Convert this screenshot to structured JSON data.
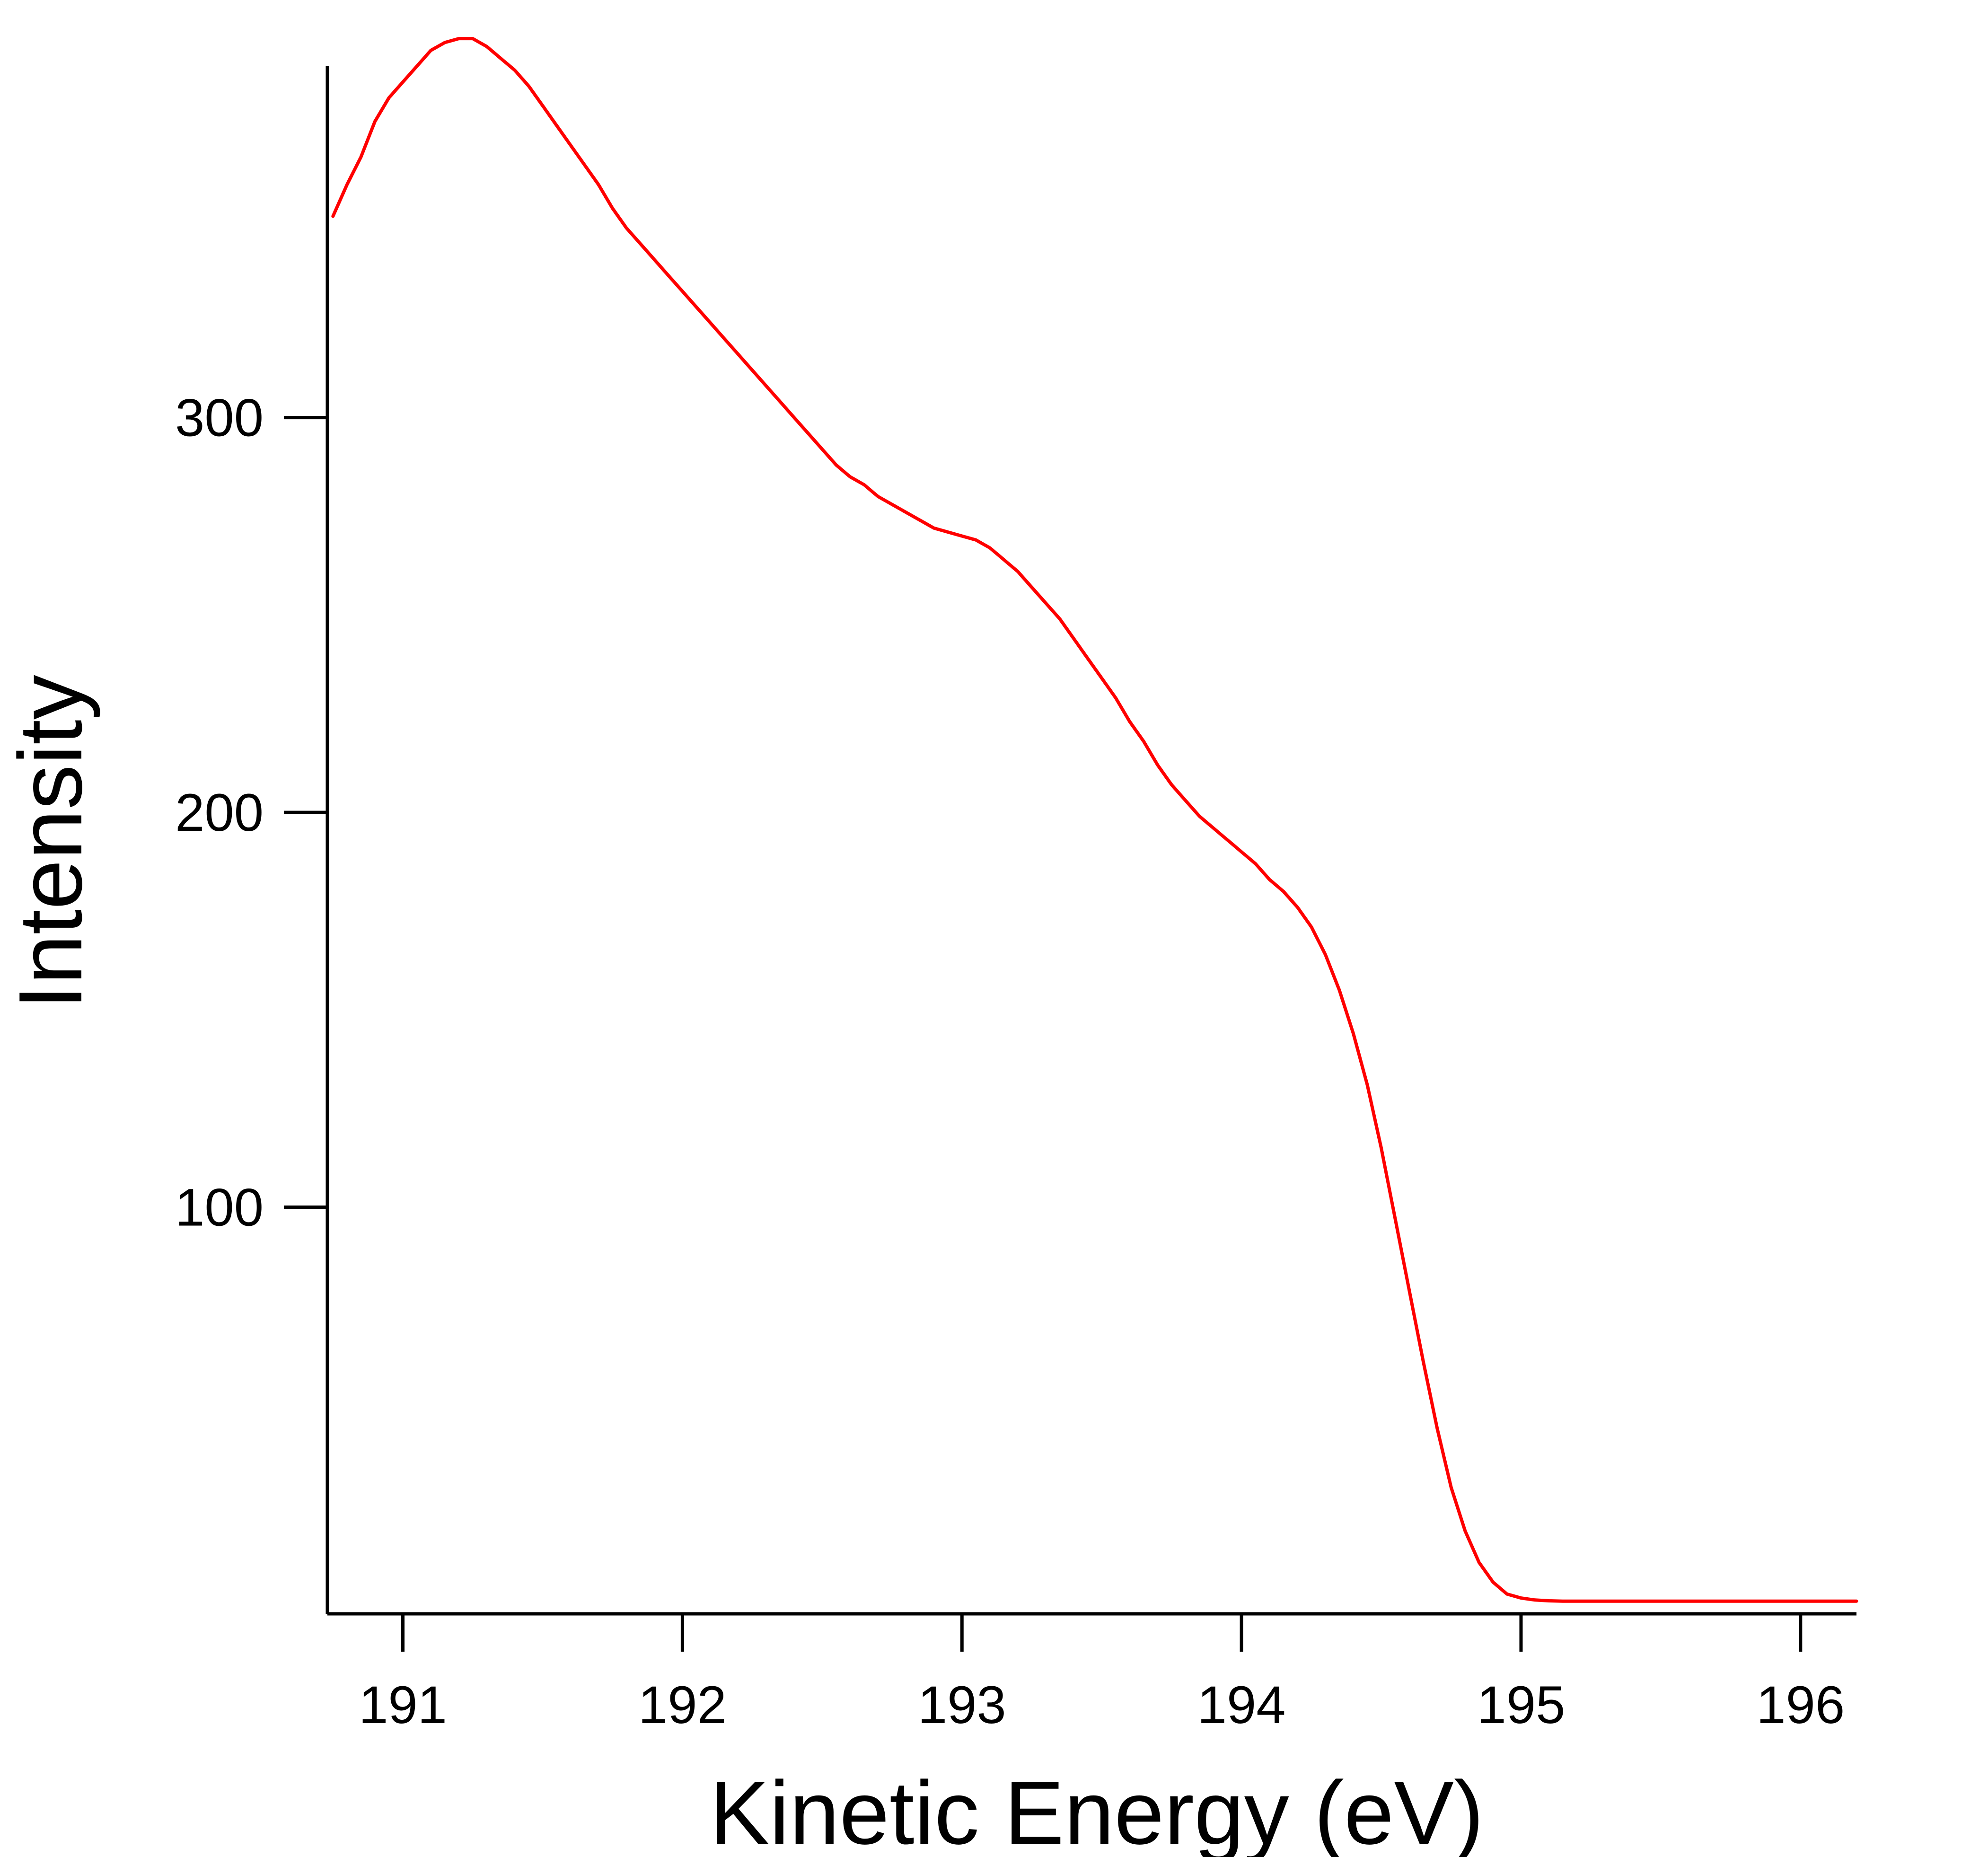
{
  "chart_data": {
    "type": "line",
    "xlabel": "Kinetic Energy (eV)",
    "ylabel": "Intensity",
    "xlim": [
      190.73,
      196.2
    ],
    "ylim": [
      -3,
      389
    ],
    "x_ticks": [
      191,
      192,
      193,
      194,
      195,
      196
    ],
    "x_tick_labels": [
      "191",
      "192",
      "193",
      "194",
      "195",
      "196"
    ],
    "y_ticks": [
      100,
      200,
      300
    ],
    "y_tick_labels": [
      "100",
      "200",
      "300"
    ],
    "grid": false,
    "legend": "none",
    "series": [
      {
        "color": "#ff0000",
        "x": [
          190.75,
          190.8,
          190.85,
          190.9,
          190.95,
          191.0,
          191.05,
          191.1,
          191.15,
          191.2,
          191.25,
          191.3,
          191.35,
          191.4,
          191.45,
          191.5,
          191.55,
          191.6,
          191.65,
          191.7,
          191.75,
          191.8,
          191.85,
          191.9,
          191.95,
          192.0,
          192.05,
          192.1,
          192.15,
          192.2,
          192.25,
          192.3,
          192.35,
          192.4,
          192.45,
          192.5,
          192.55,
          192.6,
          192.65,
          192.7,
          192.75,
          192.8,
          192.85,
          192.9,
          192.95,
          193.0,
          193.05,
          193.1,
          193.15,
          193.2,
          193.25,
          193.3,
          193.35,
          193.4,
          193.45,
          193.5,
          193.55,
          193.6,
          193.65,
          193.7,
          193.75,
          193.8,
          193.85,
          193.9,
          193.95,
          194.0,
          194.05,
          194.1,
          194.15,
          194.2,
          194.25,
          194.3,
          194.35,
          194.4,
          194.45,
          194.5,
          194.55,
          194.6,
          194.65,
          194.7,
          194.75,
          194.8,
          194.85,
          194.9,
          194.95,
          195.0,
          195.05,
          195.1,
          195.15,
          195.2,
          195.25,
          195.3,
          195.35,
          195.4,
          195.45,
          195.5,
          195.55,
          195.6,
          195.65,
          195.7,
          195.75,
          195.8,
          195.85,
          195.9,
          195.95,
          196.0,
          196.05,
          196.1,
          196.15,
          196.2
        ],
        "y": [
          351,
          359,
          366,
          375,
          381,
          385,
          389,
          393,
          395,
          396,
          396,
          394,
          391,
          388,
          384,
          379,
          374,
          369,
          364,
          359,
          353,
          348,
          344,
          340,
          336,
          332,
          328,
          324,
          320,
          316,
          312,
          308,
          304,
          300,
          296,
          292,
          288,
          285,
          283,
          280,
          278,
          276,
          274,
          272,
          271,
          270,
          269,
          267,
          264,
          261,
          257,
          253,
          249,
          244,
          239,
          234,
          229,
          223,
          218,
          212,
          207,
          203,
          199,
          196,
          193,
          190,
          187,
          183,
          180,
          176,
          171,
          164,
          155,
          144,
          131,
          115,
          97,
          79,
          61,
          44,
          29,
          18,
          10,
          5,
          2,
          1,
          0.5,
          0.3,
          0.2,
          0.2,
          0.2,
          0.2,
          0.2,
          0.2,
          0.2,
          0.2,
          0.2,
          0.2,
          0.2,
          0.2,
          0.2,
          0.2,
          0.2,
          0.2,
          0.2,
          0.2,
          0.2,
          0.2,
          0.2,
          0.2
        ]
      }
    ]
  }
}
